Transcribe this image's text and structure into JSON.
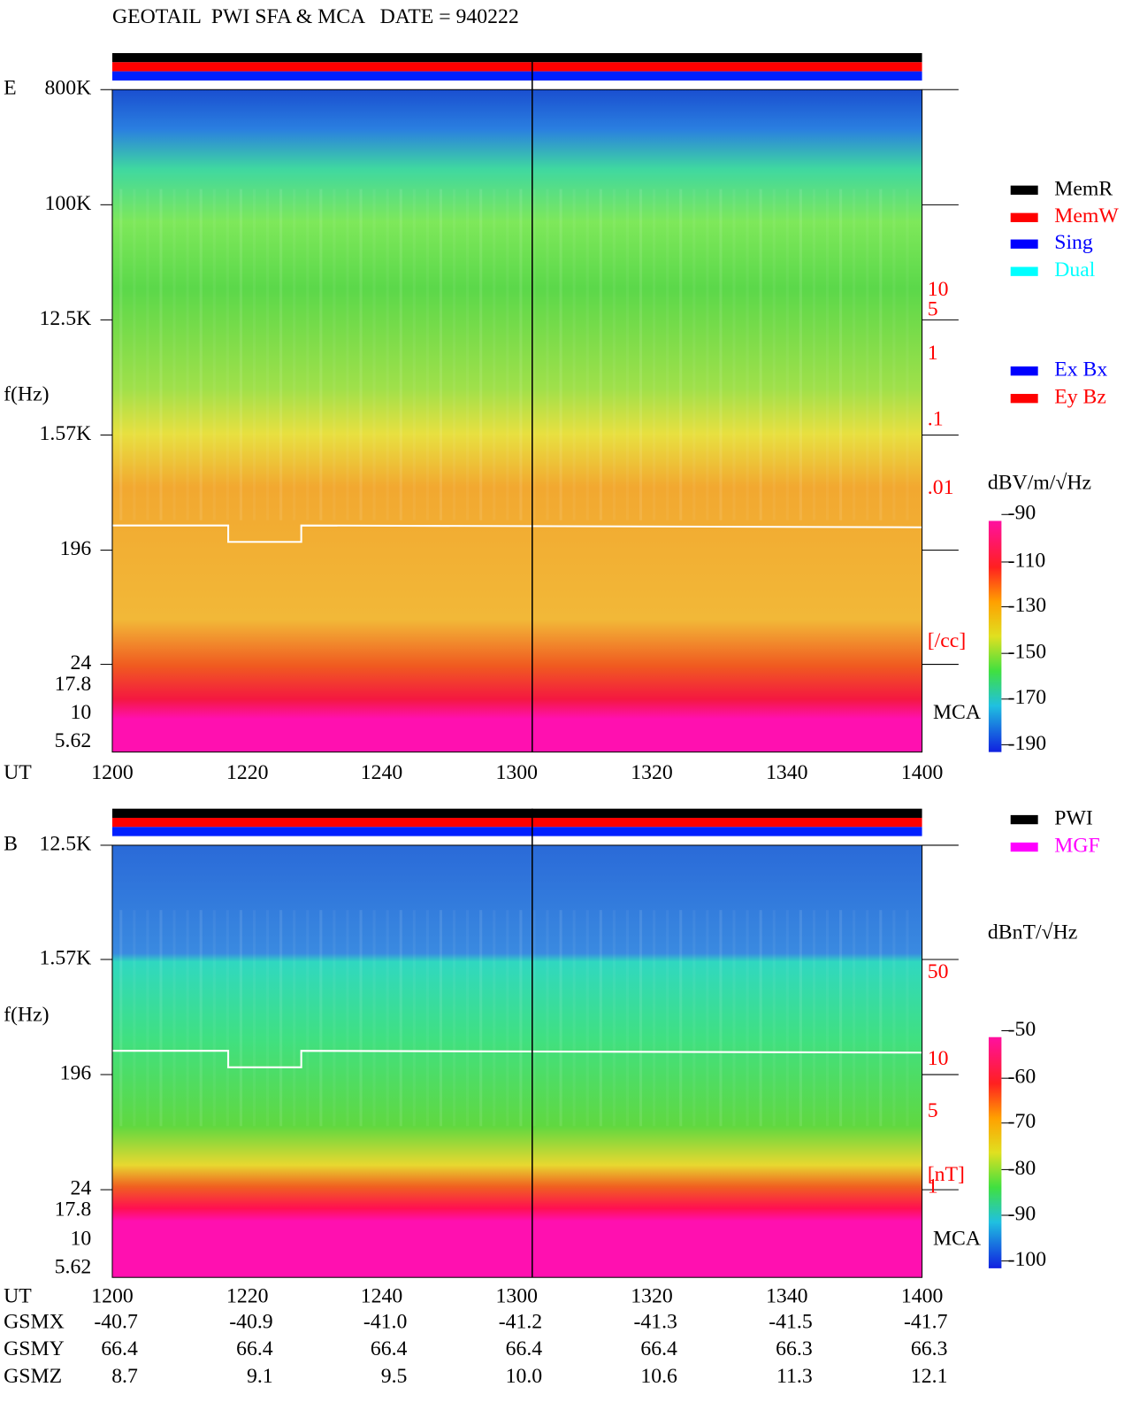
{
  "header": {
    "title": "GEOTAIL  PWI SFA & MCA   DATE = 940222"
  },
  "panels": [
    {
      "label": "E",
      "y_axis_label": "f(Hz)",
      "freq_labels": [
        "800K",
        "100K",
        "12.5K",
        "1.57K",
        "196",
        "24",
        "17.8",
        "10",
        "5.62"
      ],
      "right_labels": [
        ".1",
        ".01",
        "1",
        "5",
        "10",
        "[/cc]"
      ],
      "mca_label": "MCA",
      "legend": [
        {
          "name": "MemR",
          "color": "#000000"
        },
        {
          "name": "MemW",
          "color": "#ff0000"
        },
        {
          "name": "Sing",
          "color": "#0000ff"
        },
        {
          "name": "Dual",
          "color": "#00ffff"
        },
        {
          "name": "Ex Bx",
          "color": "#0000ff"
        },
        {
          "name": "Ey Bz",
          "color": "#ff0000"
        }
      ],
      "colorbar": {
        "unit": "dBV/m/√Hz",
        "ticks": [
          "-90",
          "-110",
          "-130",
          "-150",
          "-170",
          "-190"
        ]
      }
    },
    {
      "label": "B",
      "y_axis_label": "f(Hz)",
      "freq_labels": [
        "12.5K",
        "1.57K",
        "196",
        "24",
        "17.8",
        "10",
        "5.62"
      ],
      "right_labels": [
        "50",
        "10",
        "5",
        "1",
        "[nT]"
      ],
      "mca_label": "MCA",
      "legend": [
        {
          "name": "PWI",
          "color": "#000000"
        },
        {
          "name": "MGF",
          "color": "#ff00ff"
        }
      ],
      "colorbar": {
        "unit": "dBnT/√Hz",
        "ticks": [
          "-50",
          "-60",
          "-70",
          "-80",
          "-90",
          "-100"
        ]
      }
    }
  ],
  "ut": {
    "label": "UT",
    "ticks": [
      "1200",
      "1220",
      "1240",
      "1300",
      "1320",
      "1340",
      "1400"
    ]
  },
  "orbit": [
    {
      "label": "GSMX",
      "values": [
        "-40.7",
        "-40.9",
        "-41.0",
        "-41.2",
        "-41.3",
        "-41.5",
        "-41.7"
      ]
    },
    {
      "label": "GSMY",
      "values": [
        "66.4",
        "66.4",
        "66.4",
        "66.4",
        "66.4",
        "66.3",
        "66.3"
      ]
    },
    {
      "label": "GSMZ",
      "values": [
        "8.7",
        "9.1",
        "9.5",
        "10.0",
        "10.6",
        "11.3",
        "12.1"
      ]
    }
  ]
}
